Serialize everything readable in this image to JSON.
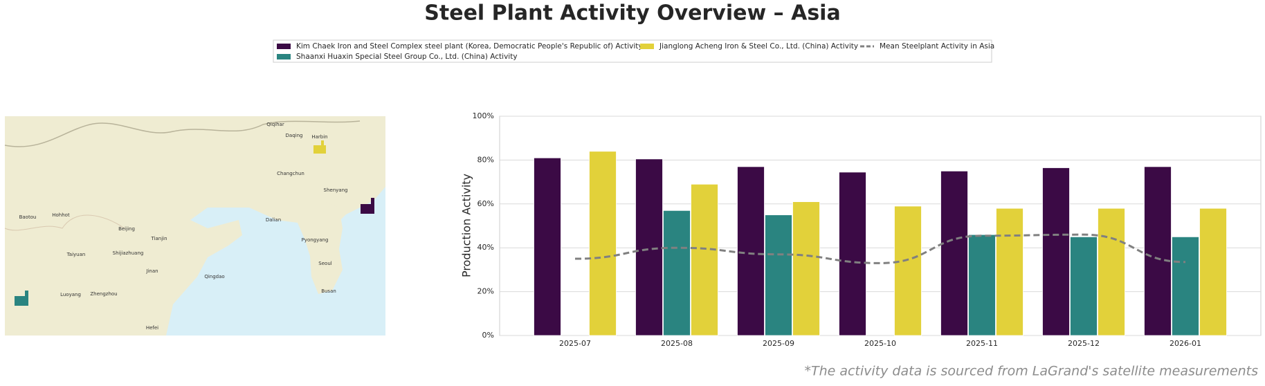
{
  "chart_data": {
    "type": "bar",
    "title": "Steel Plant Activity Overview – Asia",
    "y_label": "Production Activity",
    "footnote": "*The activity data is sourced from LaGrand's satellite measurements",
    "categories": [
      "2025-07",
      "2025-08",
      "2025-09",
      "2025-10",
      "2025-11",
      "2025-12",
      "2026-01"
    ],
    "series": [
      {
        "name": "Kim Chaek Iron and Steel Complex steel plant (Korea, Democratic People's Republic of) Activity",
        "kind": "bar",
        "color": "#3b0a45",
        "values": [
          81,
          80.5,
          77,
          74.5,
          75,
          76.5,
          77
        ]
      },
      {
        "name": "Shaanxi Huaxin Special Steel Group Co., Ltd. (China) Activity",
        "kind": "bar",
        "color": "#2a8480",
        "values": [
          null,
          57,
          55,
          null,
          46,
          45,
          45
        ]
      },
      {
        "name": "Jianglong Acheng Iron & Steel Co., Ltd. (China) Activity",
        "kind": "bar",
        "color": "#e2d13a",
        "values": [
          84,
          69,
          61,
          59,
          58,
          58,
          58
        ]
      },
      {
        "name": "Mean Steelplant Activity in Asia",
        "kind": "line",
        "dashed": true,
        "color": "#808080",
        "values": [
          35,
          40,
          37,
          33,
          45.5,
          46,
          33.5
        ]
      }
    ],
    "ylim": [
      0,
      100
    ],
    "yticks": [
      {
        "value": 0,
        "label": "0%"
      },
      {
        "value": 20,
        "label": "20%"
      },
      {
        "value": 40,
        "label": "40%"
      },
      {
        "value": 60,
        "label": "60%"
      },
      {
        "value": 80,
        "label": "80%"
      },
      {
        "value": 100,
        "label": "100%"
      }
    ],
    "grid": true
  },
  "map": {
    "labels": [
      "Harbin",
      "Changchun",
      "Shenyang",
      "Dalian",
      "Beijing",
      "Tianjin",
      "Shijiazhuang",
      "Taiyuan",
      "Jinan",
      "Qingdao",
      "Zhengzhou",
      "Luoyang",
      "Pyongyang",
      "Seoul",
      "Busan",
      "Hohhot",
      "Baotou",
      "Hefei",
      "Daqing",
      "Qiqihar"
    ]
  }
}
